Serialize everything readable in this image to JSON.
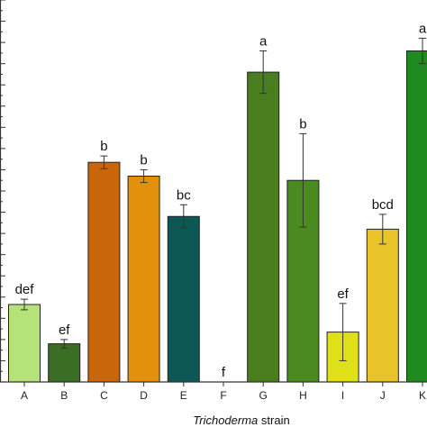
{
  "chart_data": {
    "type": "bar",
    "xlabel_italic": "Trichoderma",
    "xlabel_rest": " strain",
    "ylabel": "",
    "ylim": [
      0,
      18
    ],
    "categories": [
      "A",
      "B",
      "C",
      "D",
      "E",
      "F",
      "G",
      "H",
      "I",
      "J",
      "K"
    ],
    "values": [
      3.65,
      1.8,
      10.35,
      9.7,
      7.8,
      0,
      14.6,
      9.5,
      2.35,
      7.2,
      15.6
    ],
    "errors": [
      0.25,
      0.2,
      0.3,
      0.3,
      0.55,
      0,
      1.0,
      2.2,
      1.35,
      0.7,
      0.6
    ],
    "significance": [
      "def",
      "ef",
      "b",
      "b",
      "bc",
      "f",
      "a",
      "b",
      "ef",
      "bcd",
      "a"
    ],
    "colors": [
      "#b5e379",
      "#3a6e24",
      "#c9650a",
      "#e3900d",
      "#0d5754",
      "#3a6e24",
      "#4a7d1e",
      "#4b8a1f",
      "#dfe01a",
      "#e8c42a",
      "#1f8a1f"
    ],
    "bar_outline": "#222222",
    "axis_color": "#333333"
  }
}
